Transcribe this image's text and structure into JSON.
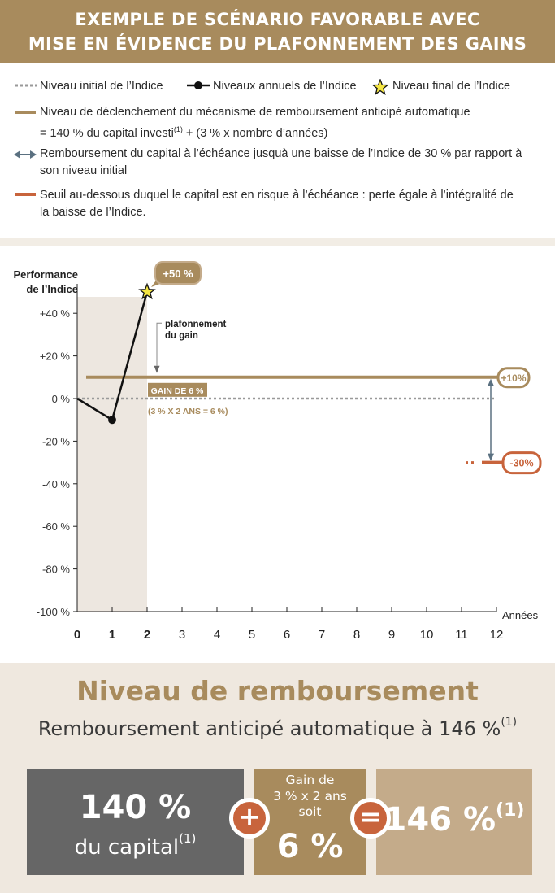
{
  "header": {
    "line1": "EXEMPLE DE SCÉNARIO FAVORABLE AVEC",
    "line2": "MISE EN ÉVIDENCE DU PLAFONNEMENT DES GAINS"
  },
  "legend": {
    "initial": "Niveau initial de l’Indice",
    "annual": "Niveaux annuels de l’Indice",
    "final": "Niveau final de l’Indice",
    "trigger_line1_a": "Niveau de déclenchement du mécanisme de remboursement anticipé automatique",
    "trigger_line2_a": "= 140 % du capital investi",
    "trigger_sup": "(1)",
    "trigger_line2_b": " + (3 % x nombre d’années)",
    "capital_line1": "Remboursement du capital à l’échéance jusquà une baisse de l’Indice de 30 % par rapport à",
    "capital_line2": "son niveau initial",
    "risk_line1": "Seuil au-dessous duquel le capital est en risque à l’échéance : perte égale à l’intégralité de",
    "risk_line2": "la baisse de l’Indice."
  },
  "colors": {
    "gold": "#a88b5d",
    "gold_light": "#c4ab8a",
    "dark_grey": "#666666",
    "red": "#c8643c",
    "arrow": "#5a7080",
    "beige": "#efe8df",
    "shade": "#ede7e0",
    "star": "#f5e642"
  },
  "chart_data": {
    "type": "line",
    "ylabel_line1": "Performance",
    "ylabel_line2": "de l’Indice",
    "xlabel": "Années",
    "x": [
      0,
      1,
      2
    ],
    "series": [
      {
        "name": "Niveaux annuels de l’Indice",
        "values": [
          0,
          -10,
          50
        ]
      }
    ],
    "xticks": [
      "0",
      "1",
      "2",
      "3",
      "4",
      "5",
      "6",
      "7",
      "8",
      "9",
      "10",
      "11",
      "12"
    ],
    "yticks": [
      40,
      20,
      0,
      -20,
      -40,
      -60,
      -80,
      -100
    ],
    "ytick_labels": [
      "+40 %",
      "+20 %",
      "0 %",
      "-20 %",
      "-40 %",
      "-60 %",
      "-80 %",
      "-100 %"
    ],
    "xlim": [
      0,
      12
    ],
    "ylim": [
      -100,
      50
    ],
    "trigger_level": 10,
    "risk_threshold": -30,
    "final_label": "+50 %",
    "trigger_label": "+10%",
    "risk_label": "-30%",
    "cap_annotation_line1": "plafonnement",
    "cap_annotation_line2": "du gain",
    "gain_label": "GAIN DE 6 %",
    "gain_formula": "(3 % X 2 ANS = 6 %)"
  },
  "summary": {
    "title": "Niveau de remboursement",
    "subtitle": "Remboursement anticipé automatique à 146 %",
    "subtitle_sup": "(1)",
    "box1_big": "140 %",
    "box1_small": "du capital",
    "box1_sup": "(1)",
    "plus": "+",
    "box2_line1": "Gain de",
    "box2_line2": "3 % x 2 ans",
    "box2_line3": "soit",
    "box2_big": "6 %",
    "equals": "=",
    "box3_big": "146 %",
    "box3_sup": "(1)"
  }
}
